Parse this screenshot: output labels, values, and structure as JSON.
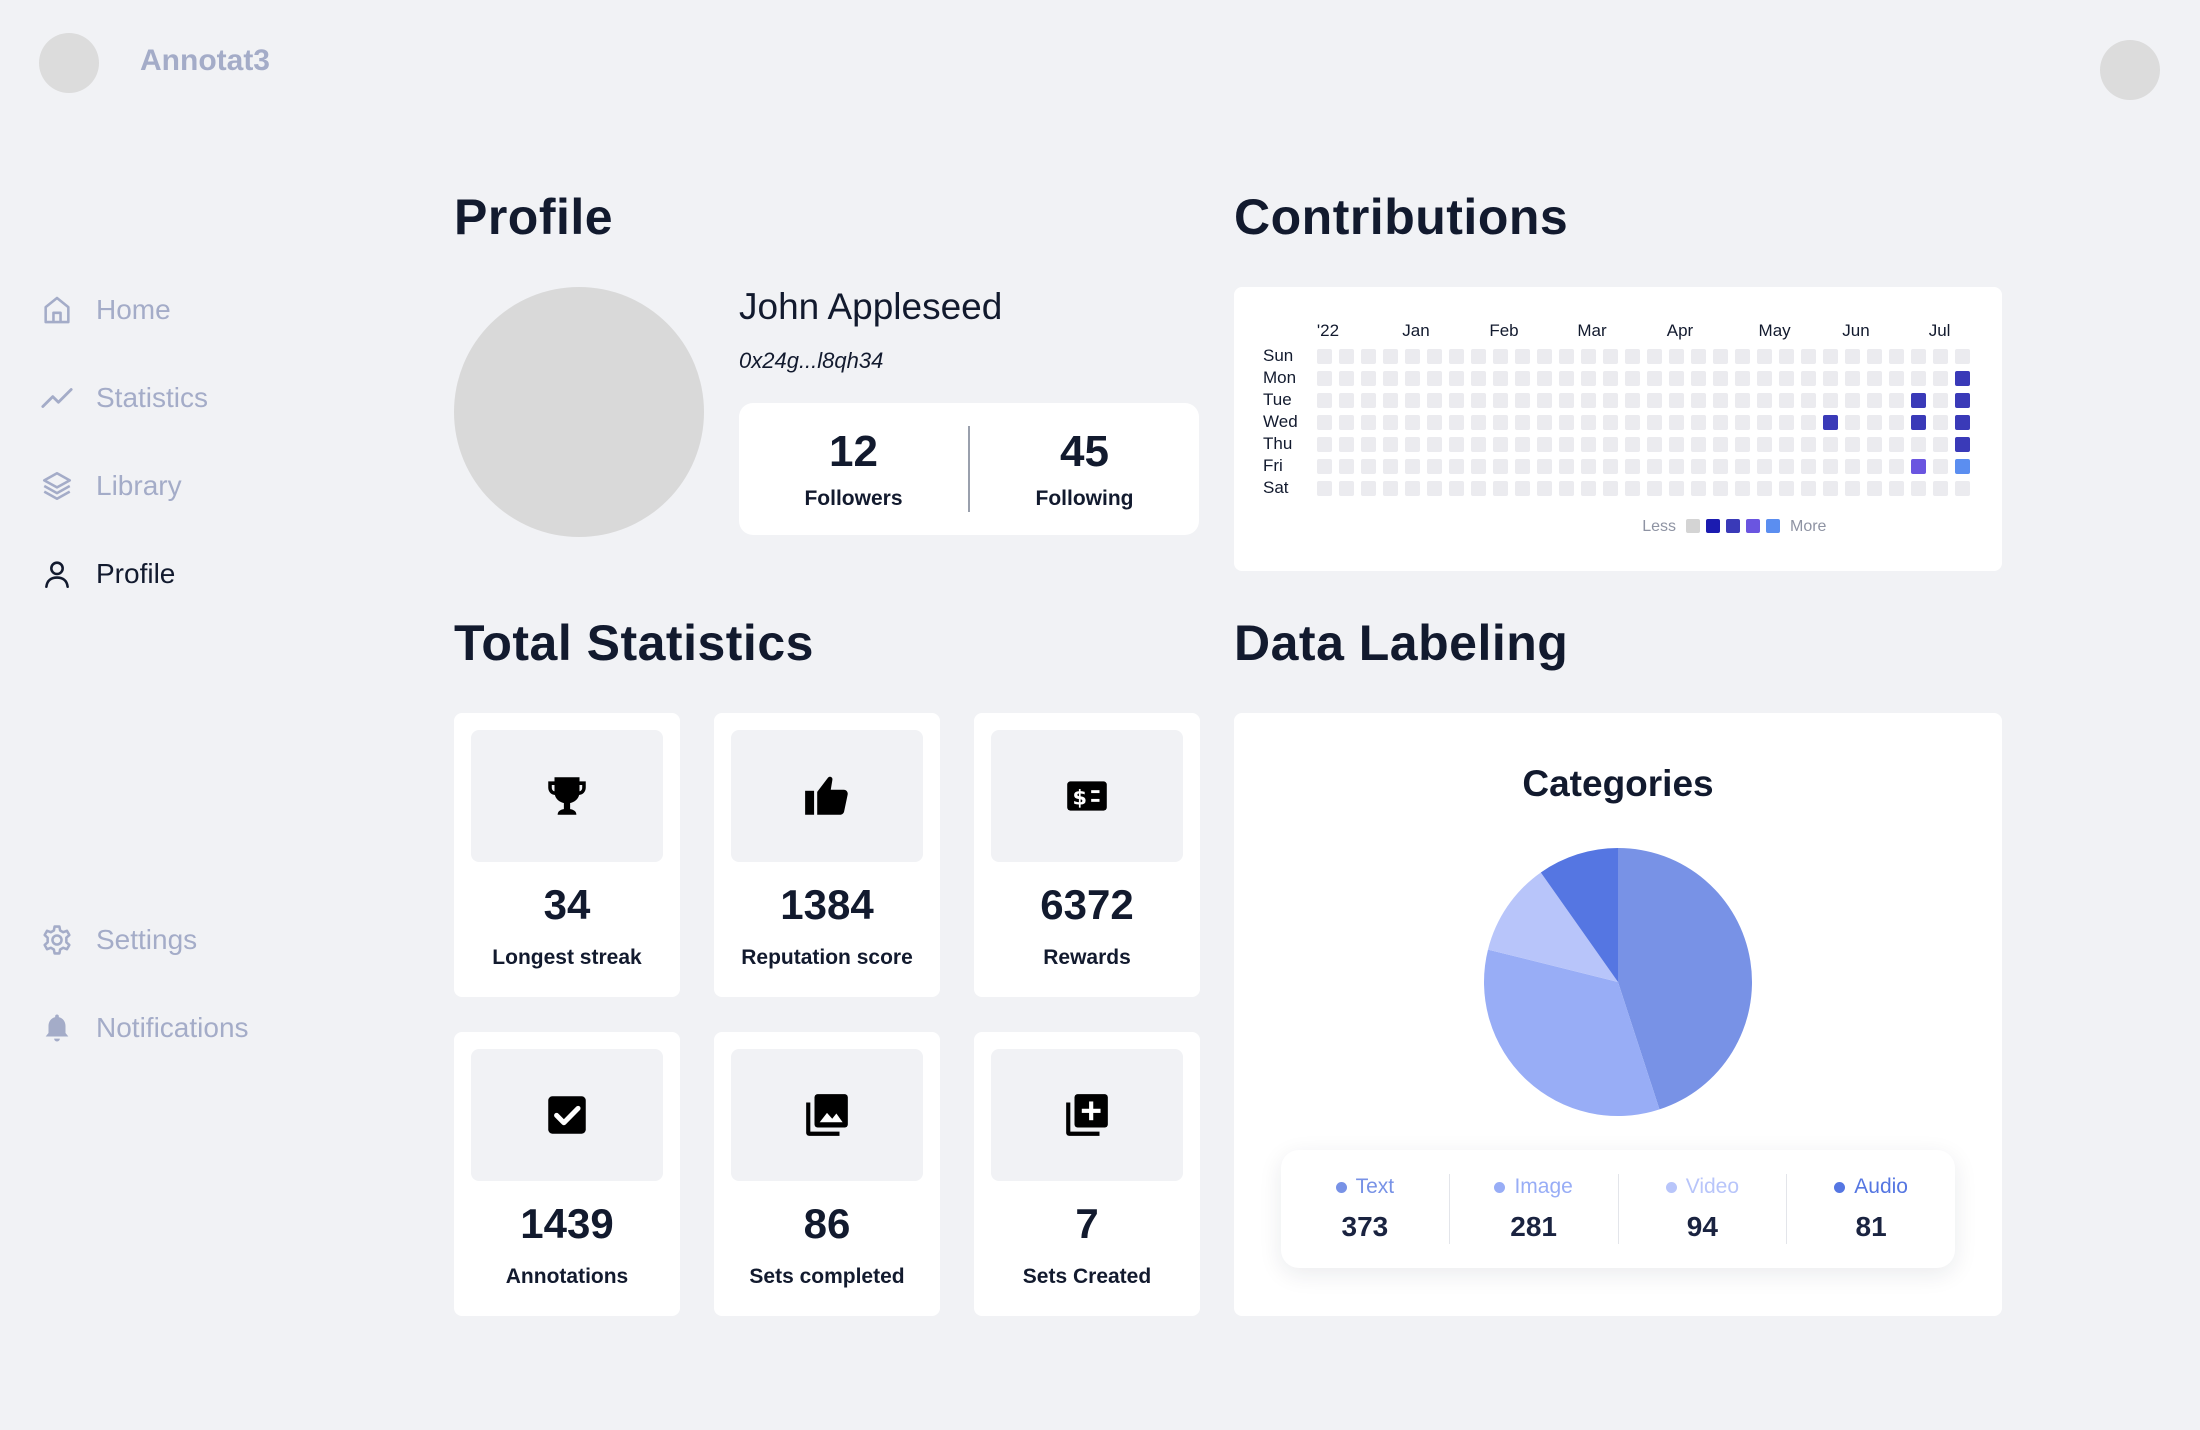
{
  "app": {
    "name": "Annotat3"
  },
  "sidebar": {
    "items": [
      {
        "label": "Home",
        "icon": "home-icon"
      },
      {
        "label": "Statistics",
        "icon": "trend-icon"
      },
      {
        "label": "Library",
        "icon": "layers-icon"
      },
      {
        "label": "Profile",
        "icon": "user-icon",
        "active": true
      }
    ],
    "bottom_items": [
      {
        "label": "Settings",
        "icon": "gear-icon"
      },
      {
        "label": "Notifications",
        "icon": "bell-icon"
      }
    ]
  },
  "sections": {
    "profile": "Profile",
    "contributions": "Contributions",
    "total_statistics": "Total Statistics",
    "data_labeling": "Data Labeling"
  },
  "profile": {
    "name": "John Appleseed",
    "wallet": "0x24g...l8qh34",
    "followers": {
      "value": "12",
      "label": "Followers"
    },
    "following": {
      "value": "45",
      "label": "Following"
    }
  },
  "contributions": {
    "months": [
      "'22",
      "Jan",
      "Feb",
      "Mar",
      "Apr",
      "May",
      "Jun",
      "Jul"
    ],
    "days": [
      "Sun",
      "Mon",
      "Tue",
      "Wed",
      "Thu",
      "Fri",
      "Sat"
    ],
    "weeks": 30,
    "active_cells": [
      {
        "week": 29,
        "day": 1,
        "level": 3
      },
      {
        "week": 27,
        "day": 2,
        "level": 3
      },
      {
        "week": 29,
        "day": 2,
        "level": 3
      },
      {
        "week": 23,
        "day": 3,
        "level": 3
      },
      {
        "week": 27,
        "day": 3,
        "level": 3
      },
      {
        "week": 29,
        "day": 3,
        "level": 3
      },
      {
        "week": 29,
        "day": 4,
        "level": 3
      },
      {
        "week": 27,
        "day": 5,
        "level": 4
      },
      {
        "week": 29,
        "day": 5,
        "level": 5
      }
    ],
    "legend_less": "Less",
    "legend_more": "More",
    "colors": [
      "#ebebef",
      "#d4d4d4",
      "#1b1bb0",
      "#3a3ab8",
      "#6a55e0",
      "#5b8ef0"
    ]
  },
  "stats": [
    {
      "value": "34",
      "label": "Longest streak",
      "icon": "trophy-icon"
    },
    {
      "value": "1384",
      "label": "Reputation score",
      "icon": "thumbs-up-icon"
    },
    {
      "value": "6372",
      "label": "Rewards",
      "icon": "dollar-bill-icon"
    },
    {
      "value": "1439",
      "label": "Annotations",
      "icon": "checkbox-icon"
    },
    {
      "value": "86",
      "label": "Sets completed",
      "icon": "photo-library-icon"
    },
    {
      "value": "7",
      "label": "Sets Created",
      "icon": "add-box-icon"
    }
  ],
  "chart_data": {
    "type": "pie",
    "title": "Categories",
    "categories": [
      "Text",
      "Image",
      "Video",
      "Audio"
    ],
    "values": [
      373,
      281,
      94,
      81
    ],
    "colors": [
      "#7892e6",
      "#98adf6",
      "#b8c5fa",
      "#5576e2"
    ]
  }
}
